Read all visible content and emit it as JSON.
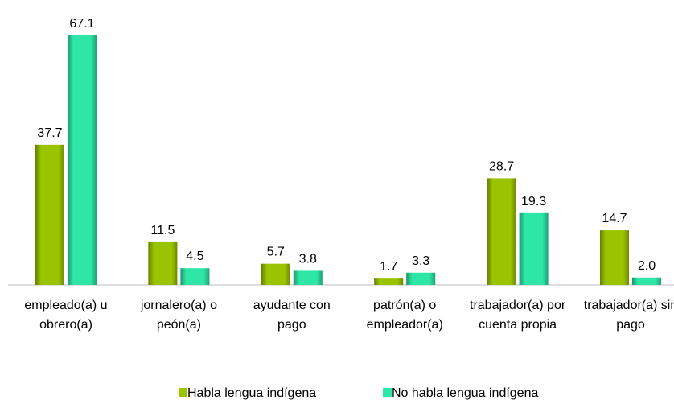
{
  "chart_data": {
    "type": "bar",
    "categories": [
      "empleado(a) u obrero(a)",
      "jornalero(a) o peón(a)",
      "ayudante con pago",
      "patrón(a) o empleador(a)",
      "trabajador(a) por cuenta propia",
      "trabajador(a) sin pago"
    ],
    "series": [
      {
        "name": "Habla lengua indígena",
        "color": "#9bc400",
        "values": [
          37.7,
          11.5,
          5.7,
          1.7,
          28.7,
          14.7
        ],
        "value_labels": [
          "37.7",
          "11.5",
          "5.7",
          "1.7",
          "28.7",
          "14.7"
        ]
      },
      {
        "name": "No habla lengua indígena",
        "color": "#2ee6a6",
        "values": [
          67.1,
          4.5,
          3.8,
          3.3,
          19.3,
          2.0
        ],
        "value_labels": [
          "67.1",
          "4.5",
          "3.8",
          "3.3",
          "19.3",
          "2.0"
        ]
      }
    ]
  }
}
